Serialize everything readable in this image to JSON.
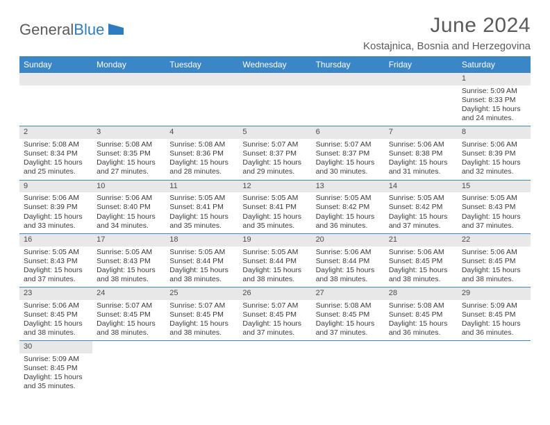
{
  "brand": {
    "part1": "General",
    "part2": "Blue"
  },
  "title": "June 2024",
  "location": "Kostajnica, Bosnia and Herzegovina",
  "colors": {
    "header_bg": "#3b86c6",
    "header_text": "#ffffff",
    "daynum_bg": "#e8e8e8",
    "text": "#3a3a3a",
    "brand_gray": "#5a5a5a",
    "brand_blue": "#2f7bbf",
    "row_border": "#3b86c6"
  },
  "typography": {
    "title_fontsize": 30,
    "location_fontsize": 15,
    "header_fontsize": 12,
    "daynum_fontsize": 11,
    "body_fontsize": 10.5
  },
  "weekdays": [
    "Sunday",
    "Monday",
    "Tuesday",
    "Wednesday",
    "Thursday",
    "Friday",
    "Saturday"
  ],
  "weeks": [
    [
      null,
      null,
      null,
      null,
      null,
      null,
      {
        "n": "1",
        "sr": "Sunrise: 5:09 AM",
        "ss": "Sunset: 8:33 PM",
        "d1": "Daylight: 15 hours",
        "d2": "and 24 minutes."
      }
    ],
    [
      {
        "n": "2",
        "sr": "Sunrise: 5:08 AM",
        "ss": "Sunset: 8:34 PM",
        "d1": "Daylight: 15 hours",
        "d2": "and 25 minutes."
      },
      {
        "n": "3",
        "sr": "Sunrise: 5:08 AM",
        "ss": "Sunset: 8:35 PM",
        "d1": "Daylight: 15 hours",
        "d2": "and 27 minutes."
      },
      {
        "n": "4",
        "sr": "Sunrise: 5:08 AM",
        "ss": "Sunset: 8:36 PM",
        "d1": "Daylight: 15 hours",
        "d2": "and 28 minutes."
      },
      {
        "n": "5",
        "sr": "Sunrise: 5:07 AM",
        "ss": "Sunset: 8:37 PM",
        "d1": "Daylight: 15 hours",
        "d2": "and 29 minutes."
      },
      {
        "n": "6",
        "sr": "Sunrise: 5:07 AM",
        "ss": "Sunset: 8:37 PM",
        "d1": "Daylight: 15 hours",
        "d2": "and 30 minutes."
      },
      {
        "n": "7",
        "sr": "Sunrise: 5:06 AM",
        "ss": "Sunset: 8:38 PM",
        "d1": "Daylight: 15 hours",
        "d2": "and 31 minutes."
      },
      {
        "n": "8",
        "sr": "Sunrise: 5:06 AM",
        "ss": "Sunset: 8:39 PM",
        "d1": "Daylight: 15 hours",
        "d2": "and 32 minutes."
      }
    ],
    [
      {
        "n": "9",
        "sr": "Sunrise: 5:06 AM",
        "ss": "Sunset: 8:39 PM",
        "d1": "Daylight: 15 hours",
        "d2": "and 33 minutes."
      },
      {
        "n": "10",
        "sr": "Sunrise: 5:06 AM",
        "ss": "Sunset: 8:40 PM",
        "d1": "Daylight: 15 hours",
        "d2": "and 34 minutes."
      },
      {
        "n": "11",
        "sr": "Sunrise: 5:05 AM",
        "ss": "Sunset: 8:41 PM",
        "d1": "Daylight: 15 hours",
        "d2": "and 35 minutes."
      },
      {
        "n": "12",
        "sr": "Sunrise: 5:05 AM",
        "ss": "Sunset: 8:41 PM",
        "d1": "Daylight: 15 hours",
        "d2": "and 35 minutes."
      },
      {
        "n": "13",
        "sr": "Sunrise: 5:05 AM",
        "ss": "Sunset: 8:42 PM",
        "d1": "Daylight: 15 hours",
        "d2": "and 36 minutes."
      },
      {
        "n": "14",
        "sr": "Sunrise: 5:05 AM",
        "ss": "Sunset: 8:42 PM",
        "d1": "Daylight: 15 hours",
        "d2": "and 37 minutes."
      },
      {
        "n": "15",
        "sr": "Sunrise: 5:05 AM",
        "ss": "Sunset: 8:43 PM",
        "d1": "Daylight: 15 hours",
        "d2": "and 37 minutes."
      }
    ],
    [
      {
        "n": "16",
        "sr": "Sunrise: 5:05 AM",
        "ss": "Sunset: 8:43 PM",
        "d1": "Daylight: 15 hours",
        "d2": "and 37 minutes."
      },
      {
        "n": "17",
        "sr": "Sunrise: 5:05 AM",
        "ss": "Sunset: 8:43 PM",
        "d1": "Daylight: 15 hours",
        "d2": "and 38 minutes."
      },
      {
        "n": "18",
        "sr": "Sunrise: 5:05 AM",
        "ss": "Sunset: 8:44 PM",
        "d1": "Daylight: 15 hours",
        "d2": "and 38 minutes."
      },
      {
        "n": "19",
        "sr": "Sunrise: 5:05 AM",
        "ss": "Sunset: 8:44 PM",
        "d1": "Daylight: 15 hours",
        "d2": "and 38 minutes."
      },
      {
        "n": "20",
        "sr": "Sunrise: 5:06 AM",
        "ss": "Sunset: 8:44 PM",
        "d1": "Daylight: 15 hours",
        "d2": "and 38 minutes."
      },
      {
        "n": "21",
        "sr": "Sunrise: 5:06 AM",
        "ss": "Sunset: 8:45 PM",
        "d1": "Daylight: 15 hours",
        "d2": "and 38 minutes."
      },
      {
        "n": "22",
        "sr": "Sunrise: 5:06 AM",
        "ss": "Sunset: 8:45 PM",
        "d1": "Daylight: 15 hours",
        "d2": "and 38 minutes."
      }
    ],
    [
      {
        "n": "23",
        "sr": "Sunrise: 5:06 AM",
        "ss": "Sunset: 8:45 PM",
        "d1": "Daylight: 15 hours",
        "d2": "and 38 minutes."
      },
      {
        "n": "24",
        "sr": "Sunrise: 5:07 AM",
        "ss": "Sunset: 8:45 PM",
        "d1": "Daylight: 15 hours",
        "d2": "and 38 minutes."
      },
      {
        "n": "25",
        "sr": "Sunrise: 5:07 AM",
        "ss": "Sunset: 8:45 PM",
        "d1": "Daylight: 15 hours",
        "d2": "and 38 minutes."
      },
      {
        "n": "26",
        "sr": "Sunrise: 5:07 AM",
        "ss": "Sunset: 8:45 PM",
        "d1": "Daylight: 15 hours",
        "d2": "and 37 minutes."
      },
      {
        "n": "27",
        "sr": "Sunrise: 5:08 AM",
        "ss": "Sunset: 8:45 PM",
        "d1": "Daylight: 15 hours",
        "d2": "and 37 minutes."
      },
      {
        "n": "28",
        "sr": "Sunrise: 5:08 AM",
        "ss": "Sunset: 8:45 PM",
        "d1": "Daylight: 15 hours",
        "d2": "and 36 minutes."
      },
      {
        "n": "29",
        "sr": "Sunrise: 5:09 AM",
        "ss": "Sunset: 8:45 PM",
        "d1": "Daylight: 15 hours",
        "d2": "and 36 minutes."
      }
    ],
    [
      {
        "n": "30",
        "sr": "Sunrise: 5:09 AM",
        "ss": "Sunset: 8:45 PM",
        "d1": "Daylight: 15 hours",
        "d2": "and 35 minutes."
      },
      null,
      null,
      null,
      null,
      null,
      null
    ]
  ]
}
